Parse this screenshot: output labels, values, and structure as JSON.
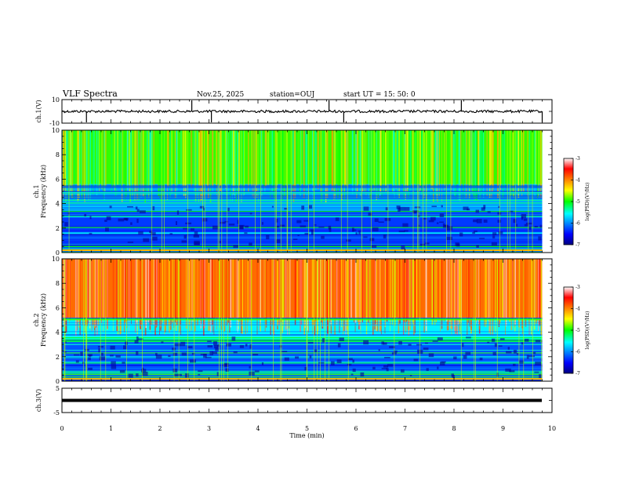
{
  "header": {
    "title": "VLF Spectra",
    "date": "Nov.25, 2025",
    "station": "station=OUJ",
    "start": "start UT =  15: 50: 0"
  },
  "chart_data": [
    {
      "type": "line",
      "panel": "ch1-waveform",
      "ylabel": "ch.1(V)",
      "ylim": [
        -10,
        10
      ],
      "ytick_labels": [
        "10",
        "-10"
      ],
      "baseline_value": 0,
      "spikes_min": [
        0.5,
        2.65,
        3.05,
        5.45,
        5.75,
        8.15,
        9.8
      ]
    },
    {
      "type": "heatmap",
      "panel": "ch1-spectrogram",
      "ylabel": "ch.1\nFrequency (kHz)",
      "ylim": [
        0,
        10
      ],
      "ytick_labels": [
        "0",
        "2",
        "4",
        "6",
        "8",
        "10"
      ],
      "colorbar": {
        "label": "log(PSD)(V²/Hz)",
        "range": [
          -7,
          -3
        ],
        "tick_labels": [
          "-3",
          "-4",
          "-5",
          "-6",
          "-7"
        ]
      },
      "bands_khz": [
        {
          "from": 0,
          "to": 3.4,
          "level": -6.3
        },
        {
          "from": 3.4,
          "to": 5.6,
          "level": -5.9
        },
        {
          "from": 5.6,
          "to": 10,
          "level": -4.9
        }
      ]
    },
    {
      "type": "heatmap",
      "panel": "ch2-spectrogram",
      "ylabel": "ch.2\nFrequency (kHz)",
      "ylim": [
        0,
        10
      ],
      "ytick_labels": [
        "0",
        "2",
        "4",
        "6",
        "8",
        "10"
      ],
      "colorbar": {
        "label": "log(PSD)(V²/Hz)",
        "range": [
          -7,
          -3
        ],
        "tick_labels": [
          "-3",
          "-4",
          "-5",
          "-6",
          "-7"
        ]
      },
      "bands_khz": [
        {
          "from": 0,
          "to": 3.2,
          "level": -6.2
        },
        {
          "from": 3.2,
          "to": 3.6,
          "level": -5.0
        },
        {
          "from": 3.6,
          "to": 5.2,
          "level": -5.6
        },
        {
          "from": 5.2,
          "to": 10,
          "level": -3.9
        }
      ]
    },
    {
      "type": "line",
      "panel": "ch3-waveform",
      "ylabel": "ch.3(V)",
      "ylim": [
        -5,
        5
      ],
      "ytick_labels": [
        "5",
        "-5"
      ],
      "baseline_value": 0
    }
  ],
  "xaxis": {
    "label": "Time (min)",
    "range": [
      0,
      10
    ],
    "tick_labels": [
      "0",
      "1",
      "2",
      "3",
      "4",
      "5",
      "6",
      "7",
      "8",
      "9",
      "10"
    ],
    "data_end_min": 9.8
  }
}
